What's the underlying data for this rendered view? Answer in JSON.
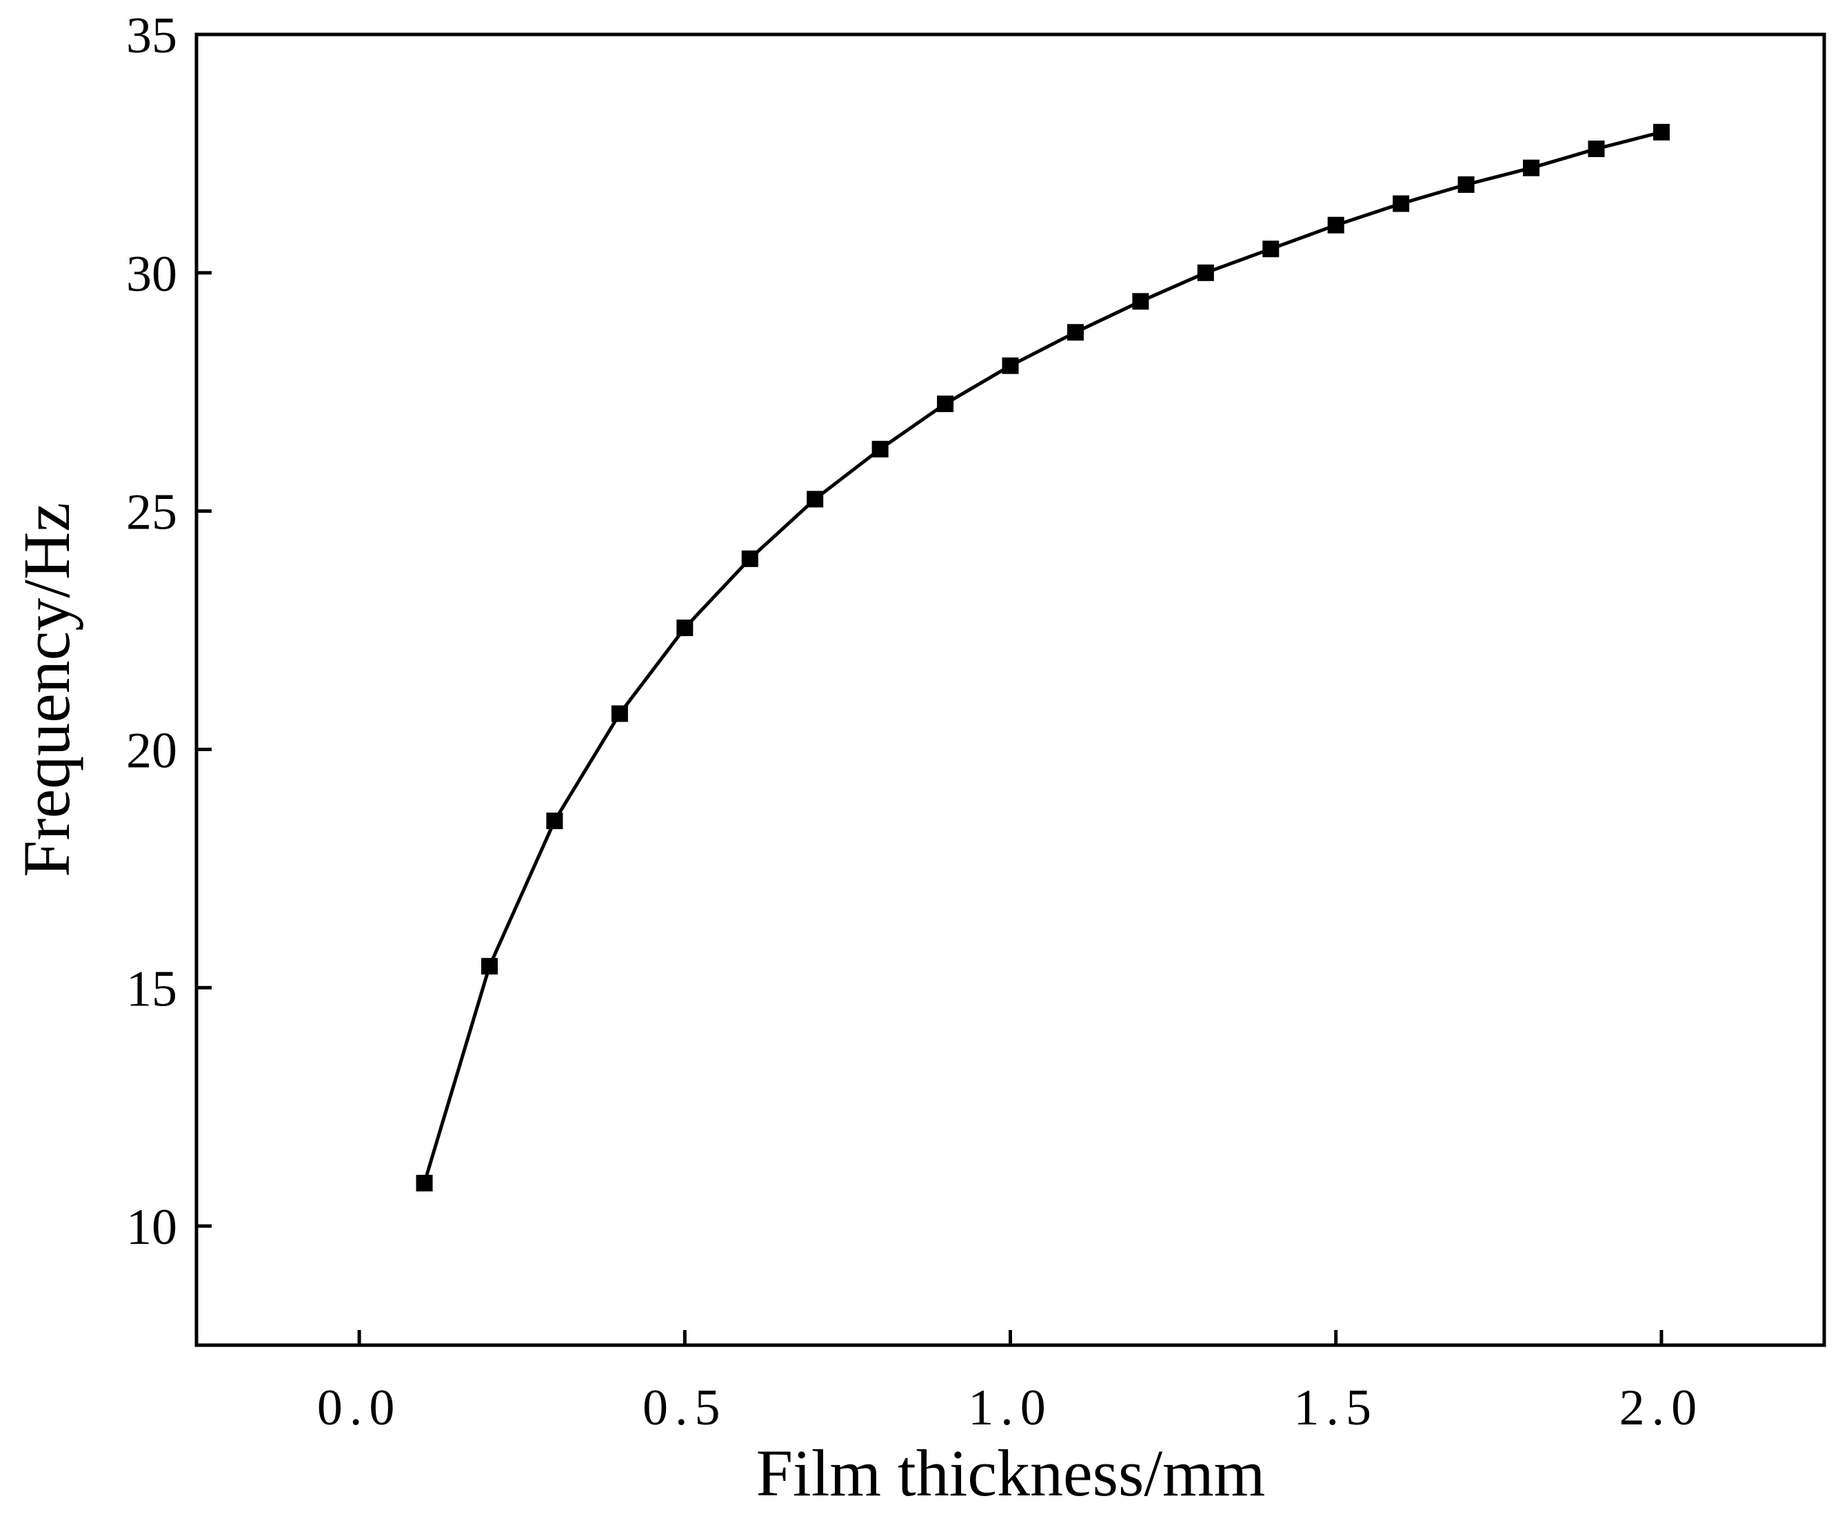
{
  "chart_data": {
    "type": "line",
    "title": "",
    "xlabel": "Film thickness/mm",
    "ylabel": "Frequency/Hz",
    "xlim": [
      -0.25,
      2.25
    ],
    "ylim": [
      7.5,
      35
    ],
    "xticks": [
      0.0,
      0.5,
      1.0,
      1.5,
      2.0
    ],
    "xtick_labels": [
      "0.0",
      "0.5",
      "1.0",
      "1.5",
      "2.0"
    ],
    "yticks": [
      10,
      15,
      20,
      25,
      30,
      35
    ],
    "ytick_labels": [
      "10",
      "15",
      "20",
      "25",
      "30",
      "35"
    ],
    "grid": false,
    "legend": "none",
    "series": [
      {
        "marker": "square",
        "color": "#000000",
        "x": [
          0.1,
          0.2,
          0.3,
          0.4,
          0.5,
          0.6,
          0.7,
          0.8,
          0.9,
          1.0,
          1.1,
          1.2,
          1.3,
          1.4,
          1.5,
          1.6,
          1.7,
          1.8,
          1.9,
          2.0
        ],
        "y": [
          10.9,
          15.45,
          18.5,
          20.75,
          22.55,
          24.0,
          25.25,
          26.3,
          27.25,
          28.05,
          28.75,
          29.4,
          30.0,
          30.5,
          31.0,
          31.45,
          31.85,
          32.2,
          32.6,
          32.95
        ]
      }
    ]
  }
}
